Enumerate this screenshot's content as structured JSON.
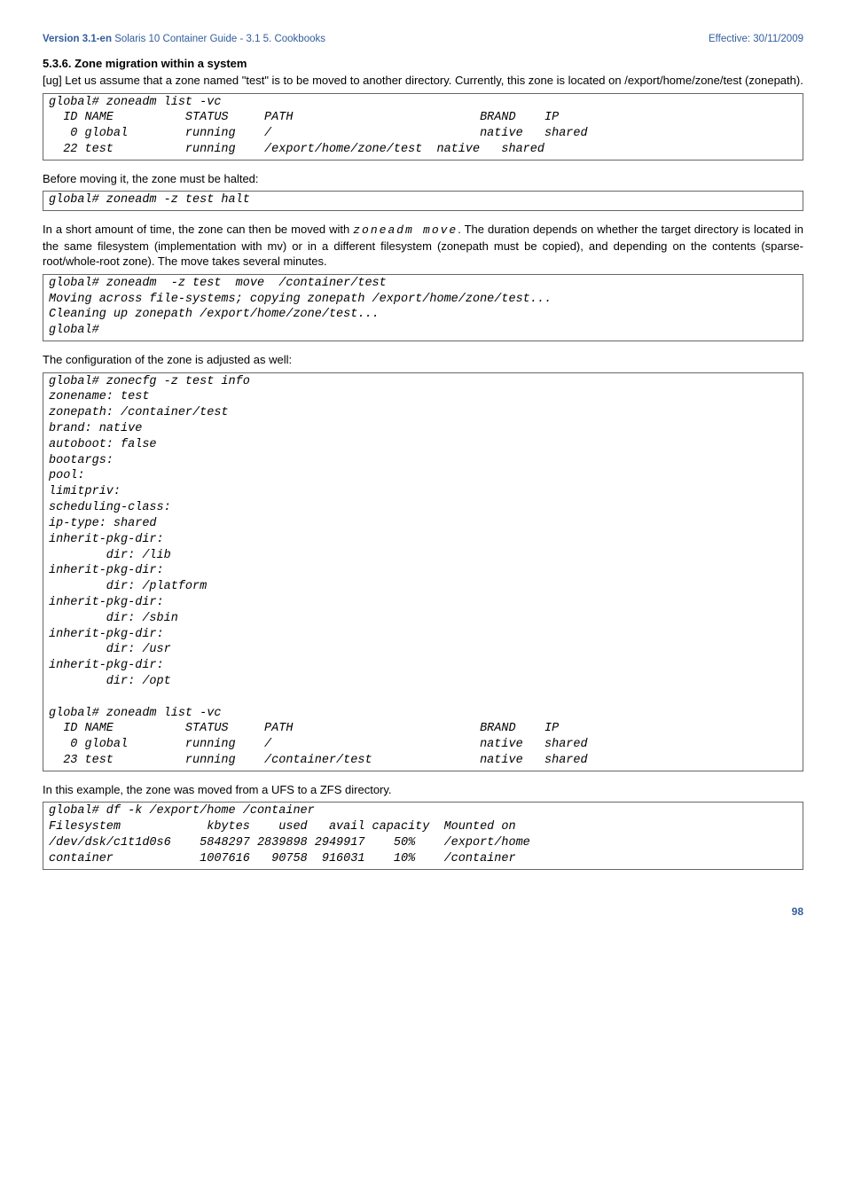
{
  "header": {
    "version": "Version 3.1-en",
    "title": "Solaris 10 Container Guide - 3.1  5. Cookbooks",
    "effective": "Effective: 30/11/2009"
  },
  "section": {
    "heading": "5.3.6. Zone migration within a system",
    "para1": "[ug] Let us assume that a zone named \"test\" is to be moved to another directory. Currently, this zone is located on /export/home/zone/test (zonepath)."
  },
  "code1": "global# zoneadm list -vc\n  ID NAME          STATUS     PATH                          BRAND    IP\n   0 global        running    /                             native   shared\n  22 test          running    /export/home/zone/test  native   shared",
  "para2": "Before moving it, the zone must be halted:",
  "code2": "global# zoneadm -z test halt",
  "para3a": "In a short amount of time, the zone can then be moved with ",
  "para3b": "zoneadm move",
  "para3c": ". The duration depends on whether the target directory is located in the same filesystem (implementation with mv) or in a different filesystem (zonepath must be copied), and depending on the contents (sparse-root/whole-root zone). The move takes several minutes.",
  "code3": "global# zoneadm  -z test  move  /container/test\nMoving across file-systems; copying zonepath /export/home/zone/test...\nCleaning up zonepath /export/home/zone/test...\nglobal#",
  "para4": "The configuration of the zone is adjusted as well:",
  "code4": "global# zonecfg -z test info\nzonename: test\nzonepath: /container/test\nbrand: native\nautoboot: false\nbootargs:\npool:\nlimitpriv:\nscheduling-class:\nip-type: shared\ninherit-pkg-dir:\n        dir: /lib\ninherit-pkg-dir:\n        dir: /platform\ninherit-pkg-dir:\n        dir: /sbin\ninherit-pkg-dir:\n        dir: /usr\ninherit-pkg-dir:\n        dir: /opt\n\nglobal# zoneadm list -vc\n  ID NAME          STATUS     PATH                          BRAND    IP\n   0 global        running    /                             native   shared\n  23 test          running    /container/test               native   shared",
  "para5": "In this example, the zone was moved from a UFS to a ZFS directory.",
  "code5": "global# df -k /export/home /container\nFilesystem            kbytes    used   avail capacity  Mounted on\n/dev/dsk/c1t1d0s6    5848297 2839898 2949917    50%    /export/home\ncontainer            1007616   90758  916031    10%    /container",
  "page": "98"
}
